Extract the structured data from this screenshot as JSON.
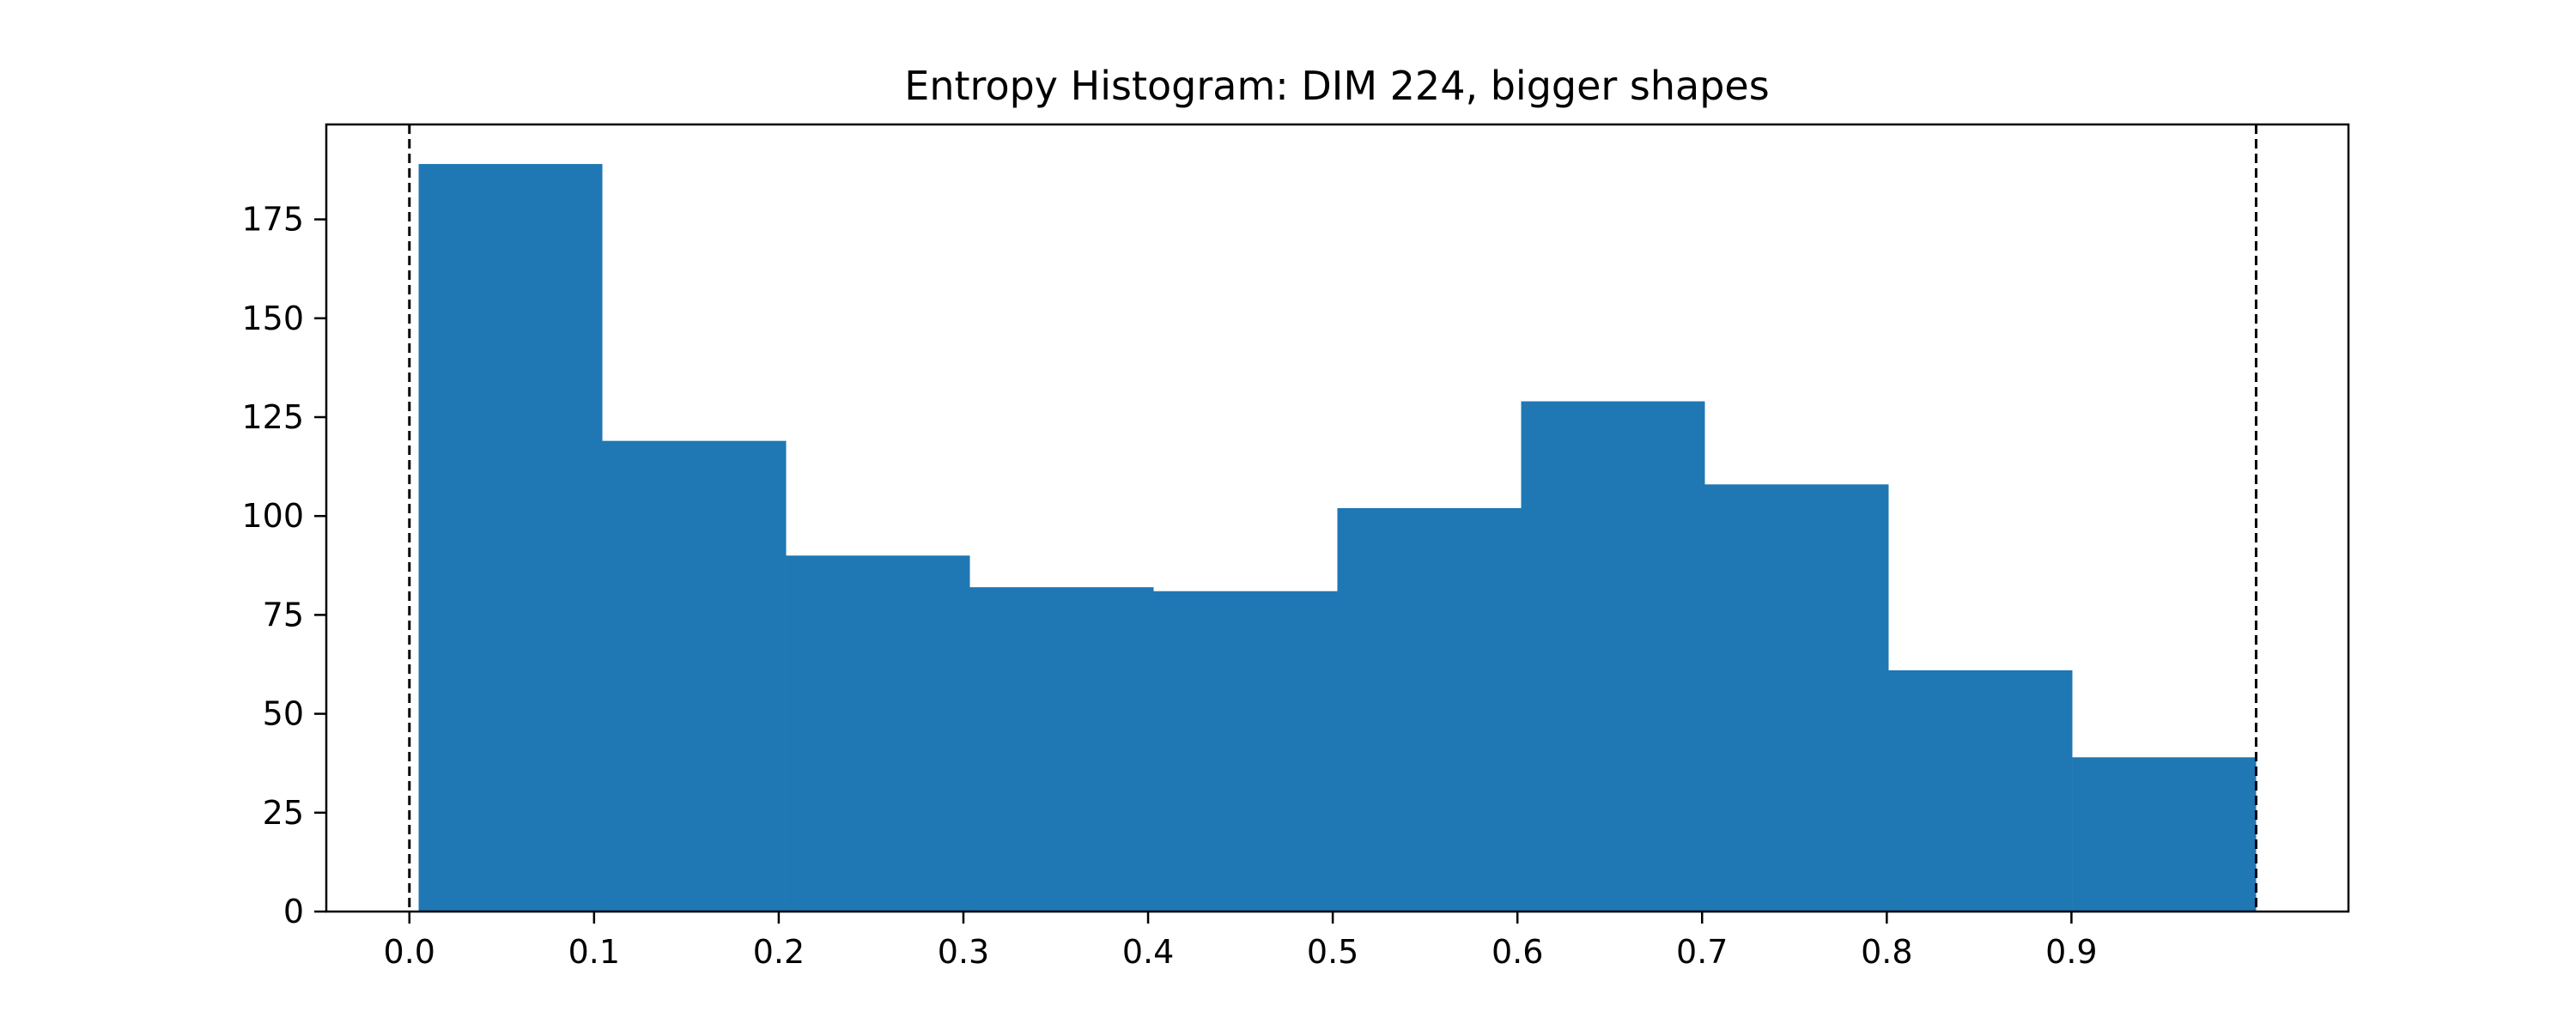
{
  "chart_data": {
    "type": "bar",
    "title": "Entropy Histogram: DIM 224, bigger shapes",
    "xlabel": "",
    "ylabel": "",
    "bins": [
      {
        "x0": 0.005,
        "x1": 0.1045,
        "count": 189
      },
      {
        "x0": 0.1045,
        "x1": 0.204,
        "count": 119
      },
      {
        "x0": 0.204,
        "x1": 0.3035,
        "count": 90
      },
      {
        "x0": 0.3035,
        "x1": 0.403,
        "count": 82
      },
      {
        "x0": 0.403,
        "x1": 0.5025,
        "count": 81
      },
      {
        "x0": 0.5025,
        "x1": 0.602,
        "count": 102
      },
      {
        "x0": 0.602,
        "x1": 0.7015,
        "count": 129
      },
      {
        "x0": 0.7015,
        "x1": 0.801,
        "count": 108
      },
      {
        "x0": 0.801,
        "x1": 0.9005,
        "count": 61
      },
      {
        "x0": 0.9005,
        "x1": 1.0,
        "count": 39
      }
    ],
    "vlines": [
      0.0,
      1.0
    ],
    "xlim": [
      -0.045,
      1.05
    ],
    "ylim": [
      0,
      199
    ],
    "xticks": [
      "0.0",
      "0.1",
      "0.2",
      "0.3",
      "0.4",
      "0.5",
      "0.6",
      "0.7",
      "0.8",
      "0.9"
    ],
    "yticks": [
      "0",
      "25",
      "50",
      "75",
      "100",
      "125",
      "150",
      "175"
    ],
    "bar_color": "#1f77b4",
    "vline_color": "#000000",
    "grid": false,
    "legend": "none"
  }
}
